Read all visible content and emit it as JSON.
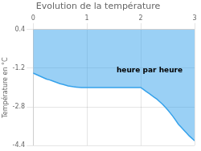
{
  "chart_data": {
    "type": "line",
    "title": "Evolution de la température",
    "ylabel": "Température en °C",
    "x": [
      0,
      0.05,
      0.1,
      0.15,
      0.2,
      0.25,
      0.3,
      0.35,
      0.4,
      0.45,
      0.5,
      0.55,
      0.6,
      0.65,
      0.7,
      0.75,
      0.8,
      0.85,
      0.9,
      0.95,
      1.0,
      1.05,
      1.1,
      1.15,
      1.2,
      1.25,
      1.3,
      1.35,
      1.4,
      1.45,
      1.5,
      1.55,
      1.6,
      1.65,
      1.7,
      1.75,
      1.8,
      1.85,
      1.9,
      1.95,
      2.0,
      2.05,
      2.1,
      2.15,
      2.2,
      2.25,
      2.3,
      2.35,
      2.4,
      2.45,
      2.5,
      2.55,
      2.6,
      2.65,
      2.7,
      2.75,
      2.8,
      2.85,
      2.9,
      2.95,
      3.0
    ],
    "values": [
      -1.4,
      -1.45,
      -1.5,
      -1.55,
      -1.6,
      -1.65,
      -1.68,
      -1.72,
      -1.76,
      -1.8,
      -1.84,
      -1.87,
      -1.9,
      -1.93,
      -1.95,
      -1.97,
      -1.98,
      -1.99,
      -2.0,
      -2.0,
      -2.0,
      -2.0,
      -2.0,
      -2.0,
      -2.0,
      -2.0,
      -2.0,
      -2.0,
      -2.0,
      -2.0,
      -2.0,
      -2.0,
      -2.0,
      -2.0,
      -2.0,
      -2.0,
      -2.0,
      -2.0,
      -2.0,
      -2.0,
      -2.0,
      -2.08,
      -2.16,
      -2.24,
      -2.32,
      -2.4,
      -2.48,
      -2.58,
      -2.68,
      -2.8,
      -2.92,
      -3.06,
      -3.2,
      -3.36,
      -3.52,
      -3.64,
      -3.76,
      -3.88,
      -4.0,
      -4.1,
      -4.2
    ],
    "xlim": [
      0,
      3
    ],
    "ylim": [
      -4.4,
      0.4
    ],
    "xticks": [
      0,
      1,
      2,
      3
    ],
    "yticks": [
      0.4,
      -1.2,
      -2.8,
      -4.4
    ],
    "grid": true,
    "annotations": [
      {
        "text": "heure par heure",
        "x": 1.55,
        "y": -1.15
      }
    ]
  }
}
